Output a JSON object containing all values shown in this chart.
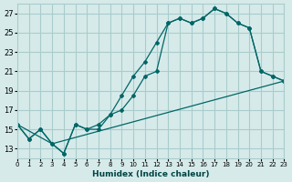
{
  "xlabel": "Humidex (Indice chaleur)",
  "ylabel": "",
  "bg_color": "#d6eaea",
  "grid_color": "#aacccc",
  "line_color": "#006666",
  "xlim": [
    0,
    23
  ],
  "ylim": [
    12,
    28
  ],
  "yticks": [
    13,
    15,
    17,
    19,
    21,
    23,
    25,
    27
  ],
  "xticks": [
    0,
    1,
    2,
    3,
    4,
    5,
    6,
    7,
    8,
    9,
    10,
    11,
    12,
    13,
    14,
    15,
    16,
    17,
    18,
    19,
    20,
    21,
    22,
    23
  ],
  "series1_x": [
    0,
    1,
    2,
    3,
    4,
    5,
    6,
    7,
    8,
    9,
    10,
    11,
    12,
    13,
    14,
    15,
    16,
    17,
    18,
    19,
    20,
    21,
    22,
    23
  ],
  "series1_y": [
    15.5,
    14.0,
    15.0,
    13.5,
    12.5,
    15.5,
    15.0,
    15.0,
    16.5,
    17.0,
    18.5,
    20.5,
    21.0,
    26.0,
    26.5,
    26.0,
    26.5,
    27.5,
    27.0,
    26.0,
    25.5,
    21.0,
    20.5,
    20.0
  ],
  "series2_x": [
    0,
    1,
    2,
    3,
    4,
    5,
    6,
    7,
    8,
    9,
    10,
    11,
    12,
    13,
    14,
    15,
    16,
    17,
    18,
    19,
    20,
    21,
    22,
    23
  ],
  "series2_y": [
    15.5,
    14.0,
    15.0,
    13.5,
    12.5,
    15.5,
    15.0,
    15.5,
    16.5,
    18.5,
    20.5,
    22.0,
    24.0,
    26.0,
    26.5,
    26.0,
    26.5,
    27.5,
    27.0,
    26.0,
    25.5,
    21.0,
    20.5,
    20.0
  ],
  "series3_x": [
    0,
    3,
    23
  ],
  "series3_y": [
    15.5,
    13.5,
    20.0
  ]
}
